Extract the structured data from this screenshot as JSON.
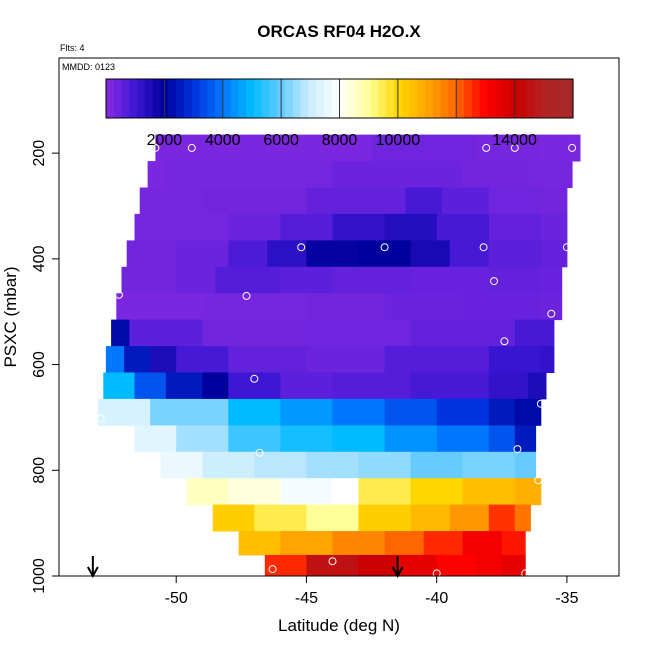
{
  "chart_data": {
    "type": "heatmap",
    "title": "ORCAS RF04 H2O.X",
    "flights_note": "Flts: 4",
    "date_note": "MMDD: 0123",
    "xlabel": "Latitude (deg N)",
    "ylabel": "PSXC (mbar)",
    "xlim": [
      -54.5,
      -33.0
    ],
    "ylim": [
      1000,
      20
    ],
    "x_ticks": [
      -50,
      -45,
      -40,
      -35
    ],
    "x_tick_labels": [
      "-50",
      "-45",
      "-40",
      "-35"
    ],
    "y_ticks": [
      200,
      400,
      600,
      800,
      1000
    ],
    "y_tick_labels": [
      "200",
      "400",
      "600",
      "800",
      "1000"
    ],
    "colorbar": {
      "min": 0,
      "max": 16000,
      "ticks": [
        2000,
        4000,
        6000,
        8000,
        10000,
        14000
      ],
      "tick_labels": [
        "2000",
        "4000",
        "6000",
        "8000",
        "10000",
        "14000"
      ],
      "divisions": [
        2000,
        4000,
        6000,
        8000,
        10000,
        12000,
        14000
      ],
      "stops": [
        {
          "v": 0,
          "c": "#8a2be2"
        },
        {
          "v": 1000,
          "c": "#3e17d6"
        },
        {
          "v": 2000,
          "c": "#00009c"
        },
        {
          "v": 3000,
          "c": "#0033dd"
        },
        {
          "v": 4000,
          "c": "#0077ff"
        },
        {
          "v": 5000,
          "c": "#00bbff"
        },
        {
          "v": 6000,
          "c": "#66ccff"
        },
        {
          "v": 7000,
          "c": "#cceeff"
        },
        {
          "v": 8000,
          "c": "#ffffff"
        },
        {
          "v": 9000,
          "c": "#ffff99"
        },
        {
          "v": 10000,
          "c": "#ffd700"
        },
        {
          "v": 11000,
          "c": "#ffa500"
        },
        {
          "v": 12000,
          "c": "#ff6600"
        },
        {
          "v": 13000,
          "c": "#ff0000"
        },
        {
          "v": 14000,
          "c": "#cc0000"
        },
        {
          "v": 15000,
          "c": "#b22222"
        },
        {
          "v": 16000,
          "c": "#a52a2a"
        }
      ]
    },
    "levels": [
      {
        "p": 190,
        "lat0": -50.8,
        "lat1": -34.5,
        "cells": [
          [
            -50.8,
            200
          ],
          [
            -49.5,
            200
          ],
          [
            -42.5,
            350
          ],
          [
            -38.5,
            250
          ],
          [
            -36,
            200
          ]
        ]
      },
      {
        "p": 240,
        "lat0": -51.1,
        "lat1": -34.8,
        "cells": [
          [
            -51.1,
            200
          ],
          [
            -50.4,
            250
          ],
          [
            -44,
            400
          ],
          [
            -39,
            300
          ],
          [
            -36.5,
            250
          ]
        ]
      },
      {
        "p": 290,
        "lat0": -51.4,
        "lat1": -35.0,
        "cells": [
          [
            -51.4,
            250
          ],
          [
            -49,
            300
          ],
          [
            -45,
            500
          ],
          [
            -41.2,
            900
          ],
          [
            -39.8,
            600
          ],
          [
            -38,
            350
          ],
          [
            -36,
            300
          ]
        ]
      },
      {
        "p": 340,
        "lat0": -51.6,
        "lat1": -35.0,
        "cells": [
          [
            -51.6,
            250
          ],
          [
            -48,
            400
          ],
          [
            -46,
            700
          ],
          [
            -44,
            1200
          ],
          [
            -42,
            1400
          ],
          [
            -40,
            900
          ],
          [
            -38,
            500
          ],
          [
            -36,
            400
          ]
        ]
      },
      {
        "p": 390,
        "lat0": -51.9,
        "lat1": -35.0,
        "cells": [
          [
            -51.9,
            300
          ],
          [
            -50,
            400
          ],
          [
            -48,
            800
          ],
          [
            -46.5,
            1300
          ],
          [
            -45,
            1900
          ],
          [
            -43,
            2000
          ],
          [
            -41,
            1600
          ],
          [
            -39.5,
            900
          ],
          [
            -38,
            600
          ],
          [
            -36,
            500
          ]
        ]
      },
      {
        "p": 440,
        "lat0": -52.1,
        "lat1": -35.2,
        "cells": [
          [
            -52.1,
            300
          ],
          [
            -50,
            400
          ],
          [
            -48.5,
            700
          ],
          [
            -46,
            600
          ],
          [
            -44,
            500
          ],
          [
            -41,
            450
          ],
          [
            -38,
            500
          ],
          [
            -36,
            450
          ]
        ]
      },
      {
        "p": 490,
        "lat0": -52.3,
        "lat1": -35.2,
        "cells": [
          [
            -52.3,
            200
          ],
          [
            -49,
            250
          ],
          [
            -45,
            300
          ],
          [
            -42,
            400
          ],
          [
            -39,
            450
          ],
          [
            -36,
            400
          ]
        ]
      },
      {
        "p": 540,
        "lat0": -52.5,
        "lat1": -35.5,
        "cells": [
          [
            -52.5,
            2200
          ],
          [
            -51.8,
            600
          ],
          [
            -49,
            300
          ],
          [
            -45,
            350
          ],
          [
            -41,
            500
          ],
          [
            -37,
            900
          ]
        ]
      },
      {
        "p": 590,
        "lat0": -52.7,
        "lat1": -35.5,
        "cells": [
          [
            -52.7,
            4000
          ],
          [
            -52.0,
            2500
          ],
          [
            -51,
            1500
          ],
          [
            -50,
            900
          ],
          [
            -48,
            500
          ],
          [
            -45,
            400
          ],
          [
            -42,
            700
          ],
          [
            -38,
            1100
          ],
          [
            -36,
            1200
          ]
        ]
      },
      {
        "p": 640,
        "lat0": -52.8,
        "lat1": -35.8,
        "cells": [
          [
            -52.8,
            5000
          ],
          [
            -51.6,
            3500
          ],
          [
            -50.4,
            2500
          ],
          [
            -49,
            2000
          ],
          [
            -48,
            1000
          ],
          [
            -46,
            600
          ],
          [
            -44,
            700
          ],
          [
            -41,
            900
          ],
          [
            -38,
            1200
          ],
          [
            -36.5,
            1500
          ]
        ]
      },
      {
        "p": 690,
        "lat0": -53.0,
        "lat1": -36.0,
        "cells": [
          [
            -53.0,
            7200
          ],
          [
            -51,
            6200
          ],
          [
            -48,
            5000
          ],
          [
            -46,
            4500
          ],
          [
            -44,
            4000
          ],
          [
            -42,
            3500
          ],
          [
            -40,
            3000
          ],
          [
            -38,
            2500
          ],
          [
            -37,
            2200
          ]
        ]
      },
      {
        "p": 740,
        "lat0": -51.6,
        "lat1": -36.2,
        "cells": [
          [
            -51.6,
            7400
          ],
          [
            -50,
            6600
          ],
          [
            -48,
            5600
          ],
          [
            -46,
            5200
          ],
          [
            -44,
            5000
          ],
          [
            -42,
            4400
          ],
          [
            -40,
            4000
          ],
          [
            -38,
            3500
          ],
          [
            -37,
            2500
          ]
        ]
      },
      {
        "p": 790,
        "lat0": -50.6,
        "lat1": -36.2,
        "cells": [
          [
            -50.6,
            7600
          ],
          [
            -49,
            7000
          ],
          [
            -47,
            6800
          ],
          [
            -45,
            6600
          ],
          [
            -43,
            6400
          ],
          [
            -41,
            6000
          ],
          [
            -39,
            6200
          ],
          [
            -37,
            6000
          ]
        ]
      },
      {
        "p": 840,
        "lat0": -49.6,
        "lat1": -36.0,
        "cells": [
          [
            -49.6,
            8600
          ],
          [
            -48,
            8300
          ],
          [
            -46,
            7800
          ],
          [
            -44,
            8000
          ],
          [
            -43,
            9500
          ],
          [
            -41,
            10000
          ],
          [
            -39,
            10500
          ],
          [
            -37,
            10800
          ]
        ]
      },
      {
        "p": 890,
        "lat0": -48.6,
        "lat1": -36.4,
        "cells": [
          [
            -48.6,
            10200
          ],
          [
            -47,
            9500
          ],
          [
            -45,
            9000
          ],
          [
            -43,
            10200
          ],
          [
            -41,
            10600
          ],
          [
            -39.5,
            11200
          ],
          [
            -38,
            12500
          ],
          [
            -37,
            11800
          ]
        ]
      },
      {
        "p": 940,
        "lat0": -47.6,
        "lat1": -36.6,
        "cells": [
          [
            -47.6,
            10500
          ],
          [
            -46,
            11000
          ],
          [
            -44,
            11500
          ],
          [
            -42,
            12000
          ],
          [
            -40.5,
            12600
          ],
          [
            -39,
            13200
          ],
          [
            -37.5,
            12800
          ]
        ]
      },
      {
        "p": 980,
        "lat0": -46.6,
        "lat1": -36.6,
        "cells": [
          [
            -46.6,
            12600
          ],
          [
            -45,
            14500
          ],
          [
            -43,
            14000
          ],
          [
            -41.5,
            13500
          ],
          [
            -40,
            13000
          ],
          [
            -38.5,
            13200
          ],
          [
            -37.5,
            13500
          ]
        ]
      }
    ],
    "points": [
      {
        "lat": -50.8,
        "p": 190
      },
      {
        "lat": -49.4,
        "p": 190
      },
      {
        "lat": -38.1,
        "p": 190
      },
      {
        "lat": -37.0,
        "p": 190
      },
      {
        "lat": -34.8,
        "p": 190
      },
      {
        "lat": -45.2,
        "p": 378
      },
      {
        "lat": -42.0,
        "p": 378
      },
      {
        "lat": -38.2,
        "p": 378
      },
      {
        "lat": -35.0,
        "p": 378
      },
      {
        "lat": -37.8,
        "p": 442
      },
      {
        "lat": -52.2,
        "p": 468
      },
      {
        "lat": -47.3,
        "p": 470
      },
      {
        "lat": -35.6,
        "p": 504
      },
      {
        "lat": -37.4,
        "p": 556
      },
      {
        "lat": -47.0,
        "p": 627
      },
      {
        "lat": -36.0,
        "p": 674
      },
      {
        "lat": -52.9,
        "p": 702
      },
      {
        "lat": -46.8,
        "p": 767
      },
      {
        "lat": -36.9,
        "p": 760
      },
      {
        "lat": -36.1,
        "p": 819
      },
      {
        "lat": -46.3,
        "p": 987
      },
      {
        "lat": -44.0,
        "p": 972
      },
      {
        "lat": -40.0,
        "p": 995
      },
      {
        "lat": -36.6,
        "p": 995
      }
    ],
    "arrows": [
      -53.2,
      -41.5
    ]
  }
}
